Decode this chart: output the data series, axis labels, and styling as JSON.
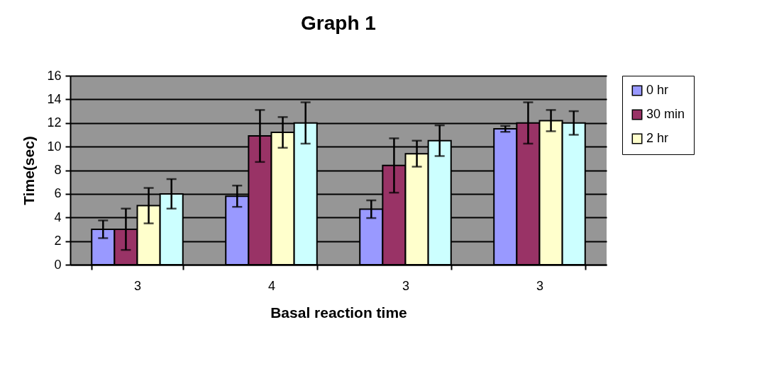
{
  "chart_data": {
    "type": "bar",
    "title": "Graph 1",
    "xlabel": "Basal reaction time",
    "ylabel": "Time(sec)",
    "categories": [
      "3",
      "4",
      "3",
      "3"
    ],
    "series": [
      {
        "name": "0 hr",
        "color": "#9999ff",
        "values": [
          3.0,
          5.8,
          4.7,
          11.5
        ],
        "errors": [
          0.75,
          0.9,
          0.75,
          0.25
        ]
      },
      {
        "name": "30 min",
        "color": "#993366",
        "values": [
          3.0,
          10.9,
          8.4,
          12.0
        ],
        "errors": [
          1.75,
          2.2,
          2.3,
          1.75
        ]
      },
      {
        "name": "2 hr",
        "color": "#ffffcc",
        "values": [
          5.0,
          11.2,
          9.4,
          12.2
        ],
        "errors": [
          1.5,
          1.3,
          1.1,
          0.9
        ]
      },
      {
        "color": "#ccffff",
        "values": [
          6.0,
          12.0,
          10.5,
          12.0
        ],
        "errors": [
          1.25,
          1.75,
          1.3,
          1.0
        ]
      }
    ],
    "ylim": [
      0,
      16
    ],
    "yticks": [
      0,
      2,
      4,
      6,
      8,
      10,
      12,
      14,
      16
    ],
    "grid": "y",
    "legend": "right"
  }
}
